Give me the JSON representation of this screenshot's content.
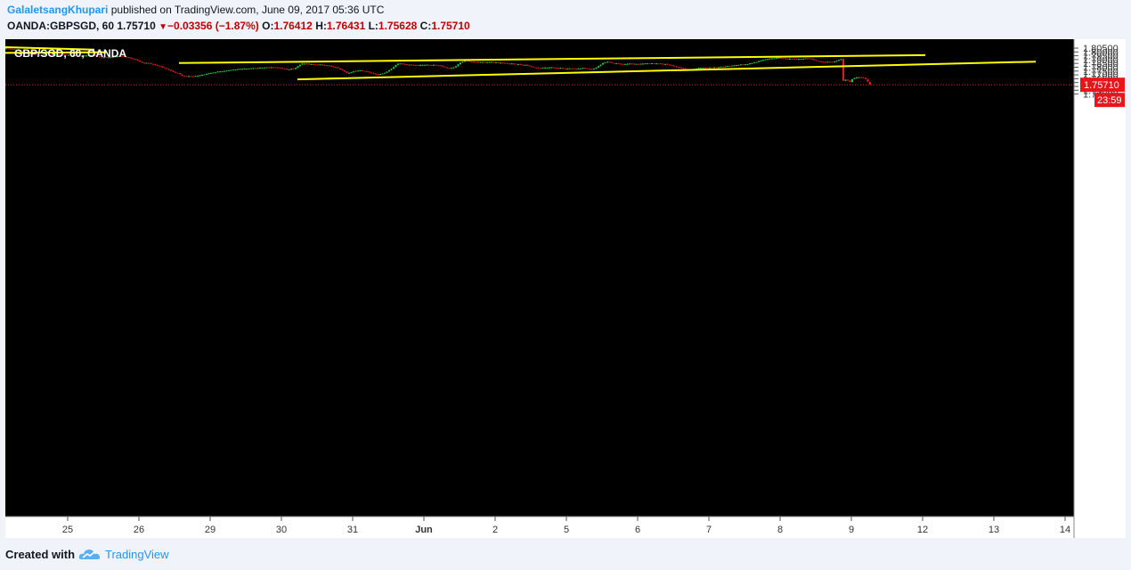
{
  "header": {
    "author": "GalaletsangKhupari",
    "published": "published on TradingView.com, June 09, 2017 05:36 UTC",
    "symbol": "OANDA:GBPSGD, 60",
    "last": "1.75710",
    "change_arrow": "▼",
    "change": "−0.03356 (−1.87%)",
    "open_label": "O:",
    "open": "1.76412",
    "high_label": "H:",
    "high": "1.76431",
    "low_label": "L:",
    "low": "1.75628",
    "close_label": "C:",
    "close": "1.75710"
  },
  "footer": {
    "created": "Created with",
    "brand": "TradingView",
    "logo_icon": "tradingview-cloud-logo-icon"
  },
  "colors": {
    "up": "#26c63a",
    "down": "#e8161b",
    "trendline": "#ffff00",
    "background": "#000000",
    "price_tag": "#e8161b",
    "brand": "#2196f3"
  },
  "chart_data": {
    "type": "candlestick",
    "title": "GBP/SGD, 60, OANDA",
    "price_axis_ticks": [
      "1.80500",
      "1.80000",
      "1.79500",
      "1.79000",
      "1.78500",
      "1.78000",
      "1.77500",
      "1.77000",
      "1.76500",
      "1.76000",
      "1.75500",
      "1.75000",
      "1.74500"
    ],
    "time_axis_ticks": [
      "25",
      "26",
      "29",
      "30",
      "31",
      "Jun",
      "2",
      "5",
      "6",
      "7",
      "8",
      "9",
      "12",
      "13",
      "14"
    ],
    "ylim": [
      1.742,
      1.807
    ],
    "last_price": "1.75710",
    "countdown": "23:59",
    "trendlines": [
      {
        "name": "upper-channel",
        "from": [
          "26 pm",
          1.7855
        ],
        "to": [
          "12",
          1.7958
        ]
      },
      {
        "name": "lower-channel",
        "from": [
          "30 am",
          1.7642
        ],
        "to": [
          "13 pm",
          1.7873
        ]
      },
      {
        "name": "top-left-upper",
        "from": [
          "24",
          1.8062
        ],
        "to": [
          "25 am",
          1.803
        ]
      },
      {
        "name": "top-left-lower",
        "from": [
          "24",
          1.7988
        ],
        "to": [
          "25 pm",
          1.7996
        ]
      }
    ],
    "path_keypoints": [
      [
        0,
        1.8045
      ],
      [
        8,
        1.804
      ],
      [
        14,
        1.803
      ],
      [
        20,
        1.8
      ],
      [
        28,
        1.7985
      ],
      [
        38,
        1.796
      ],
      [
        52,
        1.7965
      ],
      [
        64,
        1.797
      ],
      [
        72,
        1.7962
      ],
      [
        82,
        1.795
      ],
      [
        92,
        1.7955
      ],
      [
        100,
        1.7962
      ],
      [
        108,
        1.793
      ],
      [
        120,
        1.793
      ],
      [
        132,
        1.795
      ],
      [
        138,
        1.793
      ],
      [
        148,
        1.79
      ],
      [
        155,
        1.786
      ],
      [
        162,
        1.7855
      ],
      [
        170,
        1.783
      ],
      [
        180,
        1.779
      ],
      [
        188,
        1.775
      ],
      [
        195,
        1.772
      ],
      [
        200,
        1.769
      ],
      [
        210,
        1.768
      ],
      [
        218,
        1.769
      ],
      [
        226,
        1.771
      ],
      [
        234,
        1.773
      ],
      [
        245,
        1.775
      ],
      [
        258,
        1.777
      ],
      [
        270,
        1.778
      ],
      [
        282,
        1.779
      ],
      [
        294,
        1.78
      ],
      [
        305,
        1.78
      ],
      [
        312,
        1.7785
      ],
      [
        318,
        1.7775
      ],
      [
        326,
        1.778
      ],
      [
        332,
        1.783
      ],
      [
        336,
        1.785
      ],
      [
        344,
        1.784
      ],
      [
        354,
        1.7835
      ],
      [
        364,
        1.782
      ],
      [
        372,
        1.78
      ],
      [
        380,
        1.776
      ],
      [
        386,
        1.772
      ],
      [
        392,
        1.7745
      ],
      [
        400,
        1.776
      ],
      [
        408,
        1.774
      ],
      [
        414,
        1.772
      ],
      [
        420,
        1.77
      ],
      [
        428,
        1.773
      ],
      [
        436,
        1.779
      ],
      [
        442,
        1.785
      ],
      [
        450,
        1.784
      ],
      [
        458,
        1.783
      ],
      [
        466,
        1.7825
      ],
      [
        474,
        1.7835
      ],
      [
        482,
        1.783
      ],
      [
        490,
        1.782
      ],
      [
        498,
        1.779
      ],
      [
        506,
        1.78
      ],
      [
        512,
        1.786
      ],
      [
        518,
        1.789
      ],
      [
        526,
        1.787
      ],
      [
        536,
        1.7865
      ],
      [
        546,
        1.787
      ],
      [
        556,
        1.786
      ],
      [
        566,
        1.785
      ],
      [
        576,
        1.784
      ],
      [
        586,
        1.783
      ],
      [
        594,
        1.78
      ],
      [
        602,
        1.779
      ],
      [
        612,
        1.78
      ],
      [
        622,
        1.779
      ],
      [
        632,
        1.7785
      ],
      [
        642,
        1.778
      ],
      [
        652,
        1.779
      ],
      [
        660,
        1.777
      ],
      [
        666,
        1.78
      ],
      [
        672,
        1.785
      ],
      [
        678,
        1.787
      ],
      [
        686,
        1.785
      ],
      [
        694,
        1.784
      ],
      [
        702,
        1.7845
      ],
      [
        712,
        1.784
      ],
      [
        722,
        1.785
      ],
      [
        732,
        1.785
      ],
      [
        740,
        1.7845
      ],
      [
        748,
        1.783
      ],
      [
        756,
        1.78
      ],
      [
        764,
        1.778
      ],
      [
        772,
        1.777
      ],
      [
        780,
        1.779
      ],
      [
        790,
        1.7795
      ],
      [
        800,
        1.78
      ],
      [
        810,
        1.781
      ],
      [
        818,
        1.782
      ],
      [
        826,
        1.7835
      ],
      [
        834,
        1.784
      ],
      [
        842,
        1.786
      ],
      [
        848,
        1.788
      ],
      [
        854,
        1.79
      ],
      [
        862,
        1.7915
      ],
      [
        870,
        1.7925
      ],
      [
        878,
        1.791
      ],
      [
        886,
        1.791
      ],
      [
        894,
        1.7905
      ],
      [
        902,
        1.792
      ],
      [
        910,
        1.789
      ],
      [
        918,
        1.787
      ],
      [
        926,
        1.7875
      ],
      [
        932,
        1.787
      ],
      [
        938,
        1.7895
      ],
      [
        940,
        1.791
      ],
      [
        942,
        1.762
      ],
      [
        946,
        1.764
      ],
      [
        950,
        1.761
      ],
      [
        954,
        1.766
      ],
      [
        958,
        1.767
      ],
      [
        964,
        1.767
      ],
      [
        968,
        1.764
      ],
      [
        972,
        1.7571
      ]
    ]
  }
}
